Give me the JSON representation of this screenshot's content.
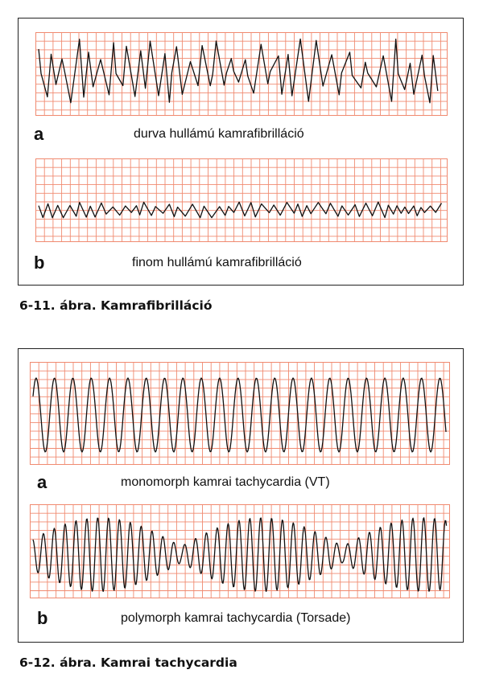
{
  "figures": [
    {
      "caption": "6-11. ábra. Kamrafibrilláció",
      "panels": [
        {
          "letter": "a",
          "label": "durva hullámú kamrafibrilláció",
          "waveform": "coarse ventricular fibrillation"
        },
        {
          "letter": "b",
          "label": "finom hullámú kamrafibrilláció",
          "waveform": "fine ventricular fibrillation"
        }
      ]
    },
    {
      "caption": "6-12. ábra. Kamrai tachycardia",
      "panels": [
        {
          "letter": "a",
          "label": "monomorph kamrai tachycardia (VT)",
          "waveform": "monomorphic ventricular tachycardia"
        },
        {
          "letter": "b",
          "label": "polymorph kamrai tachycardia (Torsade)",
          "waveform": "polymorphic ventricular tachycardia (torsade)"
        }
      ]
    }
  ],
  "colors": {
    "grid": "#f08a70",
    "trace": "#111111",
    "frame": "#222222"
  }
}
